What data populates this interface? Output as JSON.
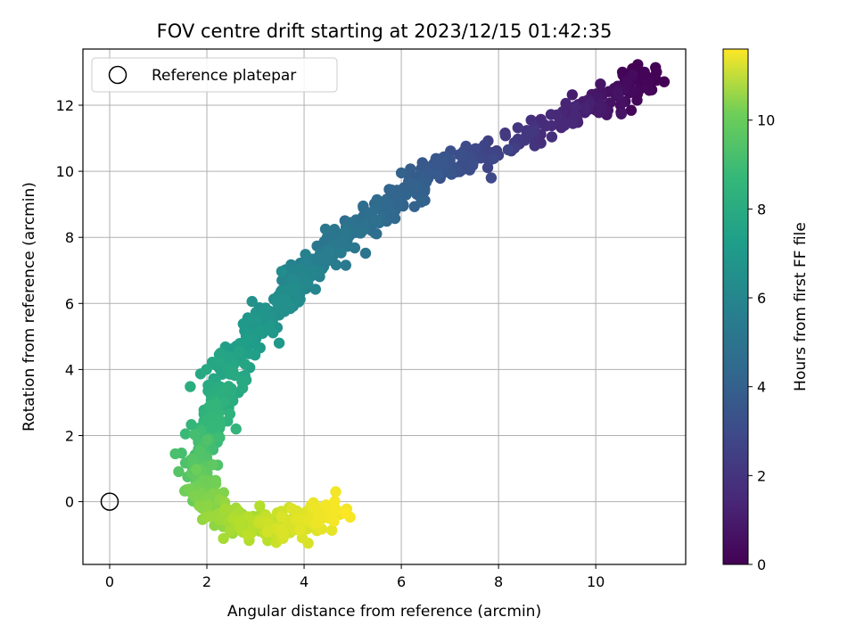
{
  "chart_data": {
    "type": "scatter",
    "title": "FOV centre drift starting at 2023/12/15 01:42:35",
    "xlabel": "Angular distance from reference (arcmin)",
    "ylabel": "Rotation from reference (arcmin)",
    "xlim": [
      -0.55,
      11.85
    ],
    "ylim": [
      -1.9,
      13.7
    ],
    "xticks": [
      0,
      2,
      4,
      6,
      8,
      10
    ],
    "yticks": [
      0,
      2,
      4,
      6,
      8,
      10,
      12
    ],
    "grid": true,
    "legend": {
      "placement": "top-left",
      "entries": [
        "Reference platepar"
      ]
    },
    "reference_point": {
      "x": 0,
      "y": 0
    },
    "colorbar": {
      "label": "Hours from first FF file",
      "min": 0,
      "max": 11.6,
      "ticks": [
        0,
        2,
        4,
        6,
        8,
        10
      ],
      "colormap": "viridis"
    },
    "trajectory": [
      {
        "x": 11.1,
        "y": 12.9,
        "t": 0.0
      },
      {
        "x": 10.5,
        "y": 12.3,
        "t": 0.4
      },
      {
        "x": 9.7,
        "y": 11.9,
        "t": 1.0
      },
      {
        "x": 8.8,
        "y": 11.3,
        "t": 1.6
      },
      {
        "x": 8.0,
        "y": 10.7,
        "t": 2.2
      },
      {
        "x": 7.2,
        "y": 10.3,
        "t": 2.8
      },
      {
        "x": 6.5,
        "y": 9.8,
        "t": 3.3
      },
      {
        "x": 6.0,
        "y": 9.1,
        "t": 3.7
      },
      {
        "x": 5.3,
        "y": 8.6,
        "t": 4.1
      },
      {
        "x": 4.8,
        "y": 8.0,
        "t": 4.5
      },
      {
        "x": 4.3,
        "y": 7.3,
        "t": 4.9
      },
      {
        "x": 3.9,
        "y": 6.7,
        "t": 5.3
      },
      {
        "x": 3.5,
        "y": 6.0,
        "t": 5.7
      },
      {
        "x": 3.1,
        "y": 5.2,
        "t": 6.1
      },
      {
        "x": 2.7,
        "y": 4.6,
        "t": 6.5
      },
      {
        "x": 2.4,
        "y": 3.9,
        "t": 6.9
      },
      {
        "x": 2.2,
        "y": 3.0,
        "t": 7.3
      },
      {
        "x": 2.0,
        "y": 2.1,
        "t": 7.8
      },
      {
        "x": 1.8,
        "y": 1.3,
        "t": 8.3
      },
      {
        "x": 1.85,
        "y": 0.6,
        "t": 8.8
      },
      {
        "x": 2.0,
        "y": 0.0,
        "t": 9.3
      },
      {
        "x": 2.4,
        "y": -0.5,
        "t": 9.8
      },
      {
        "x": 2.9,
        "y": -0.8,
        "t": 10.3
      },
      {
        "x": 3.5,
        "y": -0.75,
        "t": 10.7
      },
      {
        "x": 4.1,
        "y": -0.5,
        "t": 11.1
      },
      {
        "x": 4.7,
        "y": -0.2,
        "t": 11.5
      }
    ],
    "outliers": [
      {
        "x": 10.55,
        "y": 13.0,
        "t": 0.1
      },
      {
        "x": 11.0,
        "y": 13.0,
        "t": 0.1
      },
      {
        "x": 11.25,
        "y": 13.0,
        "t": 0.05
      },
      {
        "x": 11.05,
        "y": 12.7,
        "t": 0.15
      },
      {
        "x": 10.85,
        "y": 12.15,
        "t": 0.2
      },
      {
        "x": 10.4,
        "y": 12.35,
        "t": 0.3
      },
      {
        "x": 11.1,
        "y": 12.45,
        "t": 0.2
      },
      {
        "x": 6.0,
        "y": 9.95,
        "t": 3.6
      },
      {
        "x": 7.85,
        "y": 9.8,
        "t": 2.6
      },
      {
        "x": 3.65,
        "y": 6.6,
        "t": 5.4
      },
      {
        "x": 1.35,
        "y": 1.45,
        "t": 8.2
      },
      {
        "x": 4.65,
        "y": 0.3,
        "t": 11.4
      },
      {
        "x": 4.85,
        "y": -0.35,
        "t": 11.6
      },
      {
        "x": 5.5,
        "y": 8.5,
        "t": 4.3
      },
      {
        "x": 2.6,
        "y": 2.2,
        "t": 7.6
      }
    ],
    "point_count": 900,
    "noise_arcmin": 0.22
  }
}
